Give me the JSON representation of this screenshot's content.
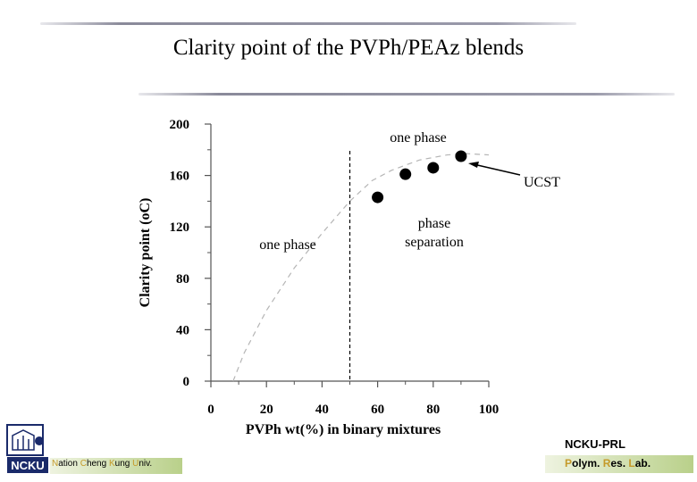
{
  "slide": {
    "title": "Clarity point of the PVPh/PEAz blends"
  },
  "chart_data": {
    "type": "scatter",
    "xlabel": "PVPh wt(%) in binary mixtures",
    "ylabel": "Clarity point (oC)",
    "xlim": [
      0,
      100
    ],
    "ylim": [
      0,
      200
    ],
    "x_ticks": [
      0,
      20,
      40,
      60,
      80,
      100
    ],
    "y_ticks": [
      0,
      40,
      80,
      120,
      160,
      200
    ],
    "series": [
      {
        "x": [
          60,
          70,
          80,
          90
        ],
        "y": [
          143,
          161,
          166,
          175
        ]
      }
    ],
    "curve": {
      "x": [
        8,
        12,
        20,
        30,
        40,
        50,
        58,
        65,
        75,
        85,
        92,
        100
      ],
      "y": [
        0,
        22,
        55,
        88,
        115,
        140,
        156,
        164,
        172,
        176,
        177,
        176
      ]
    },
    "phase_boundary_x": 50,
    "annotations": {
      "top": "one phase",
      "left": "one phase",
      "right_line1": "phase",
      "right_line2": "separation",
      "ucst": "UCST"
    },
    "grid": false
  },
  "footer": {
    "logo_text": "NCKU",
    "university_initials": [
      "N",
      "C",
      "K",
      "U"
    ],
    "university_rest": [
      "ation ",
      "heng ",
      "ung ",
      "niv."
    ],
    "lab_title": "NCKU-PRL",
    "lab_initials": [
      "P",
      "R",
      "L"
    ],
    "lab_rest": [
      "olym. ",
      "es. ",
      "ab."
    ]
  },
  "colors": {
    "marker": "#000000",
    "curve": "#b5b5b5",
    "highlight": "#c59a2a",
    "bar_light": "#eef3e0",
    "bar_dark": "#b9d08a"
  }
}
